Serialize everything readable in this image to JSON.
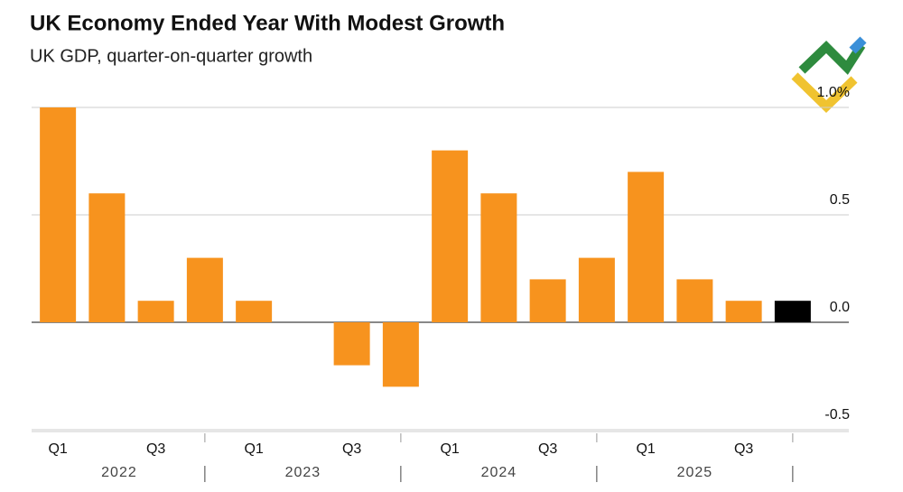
{
  "chart_data": {
    "type": "bar",
    "title": "UK Economy Ended Year With Modest Growth",
    "subtitle": "UK GDP, quarter-on-quarter growth",
    "categories": [
      "Q1",
      null,
      "Q3",
      null,
      "Q1",
      null,
      "Q3",
      null,
      "Q1",
      null,
      "Q3",
      null,
      "Q1",
      null,
      "Q3",
      null
    ],
    "years": [
      "2022",
      "2023",
      "2024",
      "2025"
    ],
    "values": [
      1.0,
      0.6,
      0.1,
      0.3,
      0.1,
      0.0,
      -0.2,
      -0.3,
      0.8,
      0.6,
      0.2,
      0.3,
      0.7,
      0.2,
      0.1,
      0.1
    ],
    "colors": [
      "#f7931e",
      "#f7931e",
      "#f7931e",
      "#f7931e",
      "#f7931e",
      "#f7931e",
      "#f7931e",
      "#f7931e",
      "#f7931e",
      "#f7931e",
      "#f7931e",
      "#f7931e",
      "#f7931e",
      "#f7931e",
      "#f7931e",
      "#000000"
    ],
    "ylim": [
      -0.5,
      1.0
    ],
    "yticks": [
      -0.5,
      {
        "value": 0.0,
        "label": "0.0"
      },
      0.5,
      {
        "value": 1.0,
        "label": "1.0%"
      }
    ],
    "grid": true
  }
}
